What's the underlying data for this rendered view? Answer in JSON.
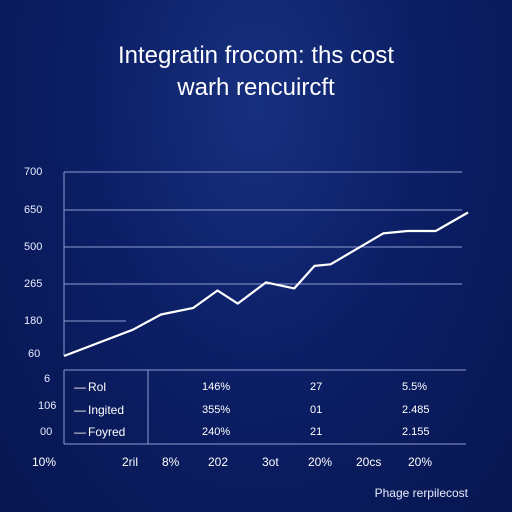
{
  "chart_data": {
    "type": "line",
    "title_line1": "Integratin frocom: ths cost",
    "title_line2": "warh rencuircft",
    "y_tick_labels": [
      "700",
      "650",
      "500",
      "265",
      "180",
      "60"
    ],
    "y_ticks_values": [
      700,
      650,
      500,
      265,
      180,
      60
    ],
    "ylim": [
      60,
      700
    ],
    "xlim": [
      0,
      100
    ],
    "series": [
      {
        "x": [
          0,
          17,
          24,
          32,
          38,
          43,
          50,
          57,
          62,
          66,
          79,
          85,
          92,
          100
        ],
        "y": [
          60,
          150,
          195,
          210,
          250,
          220,
          275,
          255,
          380,
          390,
          555,
          565,
          565,
          640
        ]
      }
    ],
    "gridlines": true,
    "table": {
      "left_labels": [
        "6",
        "106",
        "00"
      ],
      "rows": [
        {
          "label": "Rol",
          "values": [
            "146%",
            "27",
            "5.5%"
          ]
        },
        {
          "label": "Ingited",
          "values": [
            "355%",
            "01",
            "2.485"
          ]
        },
        {
          "label": "Foyred",
          "values": [
            "240%",
            "21",
            "2.155"
          ]
        }
      ]
    },
    "x_tick_labels": [
      "10%",
      "2ril",
      "8%",
      "202",
      "3ot",
      "20%",
      "20cs",
      "20%"
    ],
    "footer": "Phage rerpilecost"
  },
  "colors": {
    "line": "#ffffff",
    "grid": "#8f9bd0",
    "bg": "#0c1f66"
  }
}
